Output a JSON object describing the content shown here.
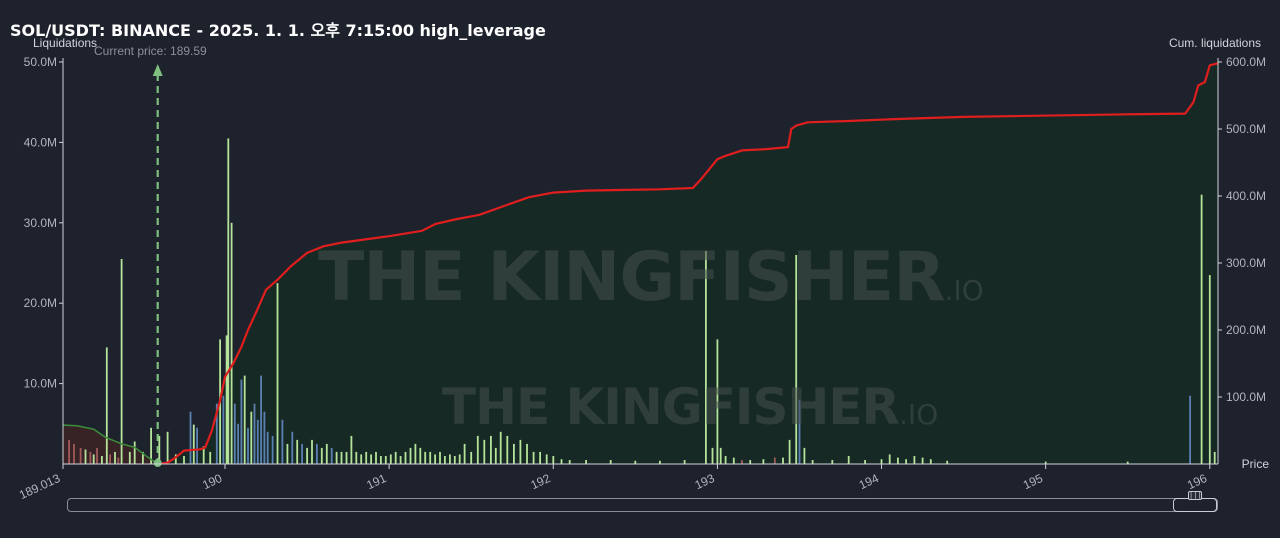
{
  "header": {
    "title": "SOL/USDT: BINANCE - 2025. 1. 1. 오후 7:15:00 high_leverage"
  },
  "watermark": {
    "brand": "THE KINGFISHER",
    "suffix": ".IO"
  },
  "colors": {
    "background": "#1e222d",
    "cumulative_line": "#e01e1e",
    "cumulative_fill": "#162a24",
    "bar_green": "#b6e39a",
    "bar_blue": "#5b80b4",
    "bar_red": "#a05a5a",
    "current_price_marker": "#7fbf7f",
    "left_short_line": "#3a8a3a"
  },
  "chart_data": {
    "type": "bar",
    "current_price_label": "Current price: 189.59",
    "current_price": 189.59,
    "x_axis": {
      "label": "Price",
      "range": [
        189.013,
        196.05
      ],
      "ticks": [
        "189.013",
        "190",
        "191",
        "192",
        "193",
        "194",
        "195",
        "196"
      ],
      "tick_values": [
        189.013,
        190,
        191,
        192,
        193,
        194,
        195,
        196
      ]
    },
    "y_left": {
      "label": "Liquidations",
      "range": [
        0,
        50000000
      ],
      "ticks": [
        "10.0M",
        "20.0M",
        "30.0M",
        "40.0M",
        "50.0M"
      ],
      "tick_values": [
        10000000,
        20000000,
        30000000,
        40000000,
        50000000
      ]
    },
    "y_right": {
      "label": "Cum. liquidations",
      "range": [
        0,
        600000000
      ],
      "ticks": [
        "100.0M",
        "200.0M",
        "300.0M",
        "400.0M",
        "500.0M",
        "600.0M"
      ],
      "tick_values": [
        100000000,
        200000000,
        300000000,
        400000000,
        500000000,
        600000000
      ]
    },
    "series": [
      {
        "kind": "liquidation_bars",
        "points": [
          [
            189.05,
            3.0,
            "r"
          ],
          [
            189.08,
            2.5,
            "r"
          ],
          [
            189.12,
            2.0,
            "r"
          ],
          [
            189.18,
            1.5,
            "r"
          ],
          [
            189.22,
            2.0,
            "r"
          ],
          [
            189.3,
            1.2,
            "r"
          ],
          [
            189.35,
            0.8,
            "r"
          ],
          [
            189.15,
            1.8,
            "g"
          ],
          [
            189.2,
            1.2,
            "g"
          ],
          [
            189.25,
            1.0,
            "g"
          ],
          [
            189.28,
            14.5,
            "g"
          ],
          [
            189.33,
            1.5,
            "g"
          ],
          [
            189.37,
            25.5,
            "g"
          ],
          [
            189.42,
            1.5,
            "g"
          ],
          [
            189.45,
            2.8,
            "g"
          ],
          [
            189.5,
            1.5,
            "g"
          ],
          [
            189.55,
            4.5,
            "g"
          ],
          [
            189.6,
            3.5,
            "g"
          ],
          [
            189.65,
            4.0,
            "g"
          ],
          [
            189.7,
            1.2,
            "g"
          ],
          [
            189.75,
            1.0,
            "g"
          ],
          [
            189.79,
            6.5,
            "b"
          ],
          [
            189.81,
            4.9,
            "g"
          ],
          [
            189.83,
            4.5,
            "b"
          ],
          [
            189.87,
            2.2,
            "g"
          ],
          [
            189.91,
            1.5,
            "g"
          ],
          [
            189.95,
            7.5,
            "b"
          ],
          [
            189.97,
            15.5,
            "g"
          ],
          [
            189.99,
            8.5,
            "b"
          ],
          [
            190.01,
            16.0,
            "g"
          ],
          [
            190.02,
            40.5,
            "g"
          ],
          [
            190.04,
            30.0,
            "g"
          ],
          [
            190.06,
            7.5,
            "b"
          ],
          [
            190.08,
            5.0,
            "b"
          ],
          [
            190.1,
            10.5,
            "b"
          ],
          [
            190.12,
            11.0,
            "g"
          ],
          [
            190.14,
            4.5,
            "b"
          ],
          [
            190.16,
            6.5,
            "g"
          ],
          [
            190.18,
            7.5,
            "b"
          ],
          [
            190.2,
            5.5,
            "b"
          ],
          [
            190.22,
            11.0,
            "b"
          ],
          [
            190.24,
            6.5,
            "b"
          ],
          [
            190.26,
            4.0,
            "b"
          ],
          [
            190.29,
            3.5,
            "b"
          ],
          [
            190.32,
            22.5,
            "g"
          ],
          [
            190.35,
            5.5,
            "b"
          ],
          [
            190.38,
            2.5,
            "g"
          ],
          [
            190.41,
            4.0,
            "b"
          ],
          [
            190.44,
            3.0,
            "g"
          ],
          [
            190.47,
            2.5,
            "b"
          ],
          [
            190.5,
            2.0,
            "g"
          ],
          [
            190.53,
            3.0,
            "g"
          ],
          [
            190.56,
            2.5,
            "b"
          ],
          [
            190.59,
            2.0,
            "g"
          ],
          [
            190.62,
            2.5,
            "g"
          ],
          [
            190.65,
            2.0,
            "b"
          ],
          [
            190.68,
            1.5,
            "g"
          ],
          [
            190.71,
            1.5,
            "g"
          ],
          [
            190.74,
            1.5,
            "g"
          ],
          [
            190.77,
            3.5,
            "g"
          ],
          [
            190.8,
            1.5,
            "g"
          ],
          [
            190.83,
            1.2,
            "g"
          ],
          [
            190.86,
            1.5,
            "g"
          ],
          [
            190.89,
            1.2,
            "g"
          ],
          [
            190.92,
            1.5,
            "g"
          ],
          [
            190.95,
            1.0,
            "g"
          ],
          [
            190.98,
            1.0,
            "g"
          ],
          [
            191.01,
            1.2,
            "g"
          ],
          [
            191.04,
            1.5,
            "g"
          ],
          [
            191.07,
            1.0,
            "g"
          ],
          [
            191.1,
            1.5,
            "g"
          ],
          [
            191.13,
            2.0,
            "g"
          ],
          [
            191.16,
            2.5,
            "g"
          ],
          [
            191.19,
            2.0,
            "g"
          ],
          [
            191.22,
            1.5,
            "g"
          ],
          [
            191.25,
            1.5,
            "g"
          ],
          [
            191.28,
            1.2,
            "g"
          ],
          [
            191.31,
            1.5,
            "g"
          ],
          [
            191.34,
            1.0,
            "g"
          ],
          [
            191.37,
            1.2,
            "g"
          ],
          [
            191.4,
            1.0,
            "g"
          ],
          [
            191.43,
            1.2,
            "g"
          ],
          [
            191.46,
            2.5,
            "g"
          ],
          [
            191.5,
            1.5,
            "g"
          ],
          [
            191.54,
            3.5,
            "g"
          ],
          [
            191.58,
            3.0,
            "g"
          ],
          [
            191.62,
            3.5,
            "g"
          ],
          [
            191.65,
            2.0,
            "g"
          ],
          [
            191.68,
            4.0,
            "g"
          ],
          [
            191.72,
            3.5,
            "g"
          ],
          [
            191.76,
            2.5,
            "g"
          ],
          [
            191.8,
            3.0,
            "g"
          ],
          [
            191.84,
            2.5,
            "g"
          ],
          [
            191.88,
            1.5,
            "g"
          ],
          [
            191.92,
            1.5,
            "g"
          ],
          [
            191.96,
            1.2,
            "g"
          ],
          [
            192.0,
            1.0,
            "g"
          ],
          [
            192.05,
            0.6,
            "g"
          ],
          [
            192.1,
            0.5,
            "g"
          ],
          [
            192.2,
            0.5,
            "g"
          ],
          [
            192.35,
            0.5,
            "g"
          ],
          [
            192.5,
            0.4,
            "g"
          ],
          [
            192.65,
            0.4,
            "g"
          ],
          [
            192.8,
            0.5,
            "g"
          ],
          [
            192.93,
            26.5,
            "g"
          ],
          [
            192.97,
            2.0,
            "g"
          ],
          [
            193.0,
            15.5,
            "g"
          ],
          [
            193.02,
            2.0,
            "g"
          ],
          [
            193.05,
            1.0,
            "g"
          ],
          [
            193.1,
            0.8,
            "g"
          ],
          [
            193.15,
            0.5,
            "r"
          ],
          [
            193.2,
            0.5,
            "g"
          ],
          [
            193.28,
            0.6,
            "g"
          ],
          [
            193.35,
            0.8,
            "r"
          ],
          [
            193.4,
            0.8,
            "g"
          ],
          [
            193.44,
            3.0,
            "g"
          ],
          [
            193.48,
            26.0,
            "g"
          ],
          [
            193.5,
            8.0,
            "b"
          ],
          [
            193.53,
            2.0,
            "g"
          ],
          [
            193.58,
            0.5,
            "g"
          ],
          [
            193.7,
            0.5,
            "g"
          ],
          [
            193.8,
            1.0,
            "g"
          ],
          [
            193.9,
            0.5,
            "g"
          ],
          [
            194.0,
            0.6,
            "g"
          ],
          [
            194.05,
            1.2,
            "g"
          ],
          [
            194.1,
            0.8,
            "g"
          ],
          [
            194.15,
            0.6,
            "g"
          ],
          [
            194.2,
            1.0,
            "g"
          ],
          [
            194.25,
            0.8,
            "g"
          ],
          [
            194.3,
            0.6,
            "g"
          ],
          [
            194.4,
            0.4,
            "g"
          ],
          [
            195.0,
            0.3,
            "g"
          ],
          [
            195.5,
            0.3,
            "g"
          ],
          [
            195.88,
            8.5,
            "b"
          ],
          [
            195.95,
            33.5,
            "g"
          ],
          [
            196.0,
            23.5,
            "g"
          ],
          [
            196.03,
            1.5,
            "g"
          ]
        ]
      },
      {
        "kind": "cumulative_line",
        "points": [
          [
            189.59,
            0
          ],
          [
            189.65,
            2
          ],
          [
            189.7,
            10
          ],
          [
            189.75,
            20
          ],
          [
            189.85,
            22
          ],
          [
            189.88,
            25
          ],
          [
            189.92,
            50
          ],
          [
            189.97,
            95
          ],
          [
            190.0,
            130
          ],
          [
            190.05,
            150
          ],
          [
            190.1,
            175
          ],
          [
            190.14,
            200
          ],
          [
            190.2,
            232
          ],
          [
            190.25,
            260
          ],
          [
            190.32,
            275
          ],
          [
            190.4,
            295
          ],
          [
            190.5,
            315
          ],
          [
            190.6,
            325
          ],
          [
            190.7,
            330
          ],
          [
            190.85,
            335
          ],
          [
            191.0,
            340
          ],
          [
            191.2,
            348
          ],
          [
            191.28,
            358
          ],
          [
            191.4,
            365
          ],
          [
            191.55,
            372
          ],
          [
            191.7,
            385
          ],
          [
            191.85,
            398
          ],
          [
            192.0,
            405
          ],
          [
            192.2,
            408
          ],
          [
            192.4,
            409
          ],
          [
            192.65,
            410
          ],
          [
            192.85,
            412
          ],
          [
            192.9,
            425
          ],
          [
            193.0,
            455
          ],
          [
            193.05,
            460
          ],
          [
            193.15,
            468
          ],
          [
            193.3,
            470
          ],
          [
            193.43,
            473
          ],
          [
            193.45,
            500
          ],
          [
            193.48,
            505
          ],
          [
            193.55,
            510
          ],
          [
            193.8,
            512
          ],
          [
            194.1,
            515
          ],
          [
            194.5,
            518
          ],
          [
            195.5,
            522
          ],
          [
            195.85,
            523
          ],
          [
            195.9,
            540
          ],
          [
            195.93,
            565
          ],
          [
            195.97,
            570
          ],
          [
            196.0,
            595
          ],
          [
            196.05,
            598
          ]
        ]
      },
      {
        "kind": "short_side_line",
        "points": [
          [
            189.013,
            58
          ],
          [
            189.1,
            57
          ],
          [
            189.2,
            52
          ],
          [
            189.27,
            40
          ],
          [
            189.37,
            30
          ],
          [
            189.45,
            25
          ],
          [
            189.52,
            12
          ],
          [
            189.59,
            0
          ]
        ]
      }
    ]
  }
}
